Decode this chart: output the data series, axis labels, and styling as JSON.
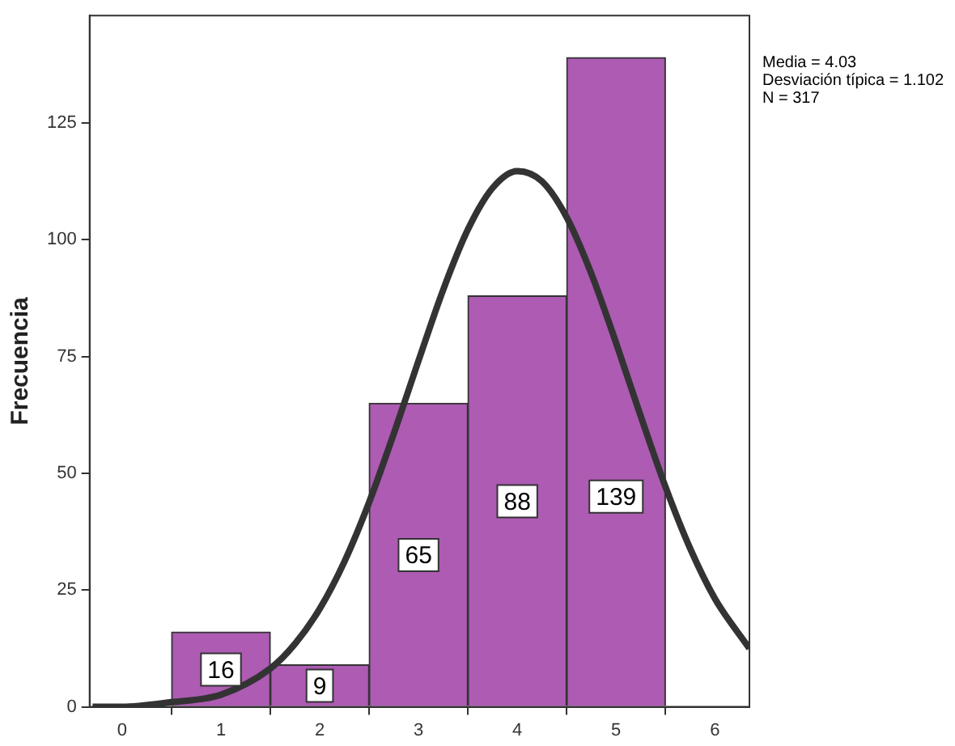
{
  "chart_data": {
    "type": "histogram",
    "ylabel": "Frecuencia",
    "bins": [
      0.5,
      1.5,
      2.5,
      3.5,
      4.5,
      5.5
    ],
    "values": [
      16,
      9,
      65,
      88,
      139
    ],
    "color": "#ad5bb3",
    "series": [
      {
        "type": "line",
        "color": "#333333",
        "x": [
          -0.3,
          0,
          0.5,
          1,
          1.5,
          1.75,
          2,
          2.25,
          2.5,
          2.75,
          3,
          3.25,
          3.5,
          3.75,
          4,
          4.25,
          4.5,
          4.75,
          5,
          5.25,
          5.5,
          5.75,
          6,
          6.35
        ],
        "values": [
          0,
          0,
          1,
          2.6,
          8.2,
          13.5,
          21.0,
          31.1,
          43.8,
          58.5,
          74.1,
          89.3,
          102.2,
          111.1,
          114.7,
          112.5,
          104.8,
          92.7,
          77.9,
          62.2,
          47.1,
          33.9,
          23.2,
          12.5
        ]
      }
    ],
    "xlim": [
      -0.33,
      6.35
    ],
    "xticks": [
      0,
      1,
      2,
      3,
      4,
      5,
      6
    ],
    "ylim": [
      0,
      148
    ],
    "yticks": [
      0,
      25,
      50,
      75,
      100,
      125
    ],
    "value_labels": [
      "16",
      "9",
      "65",
      "88",
      "139"
    ],
    "grid": false,
    "legend": false,
    "annotations": [
      "Media = 4.03",
      "Desviación típica = 1.102",
      "N = 317"
    ]
  }
}
